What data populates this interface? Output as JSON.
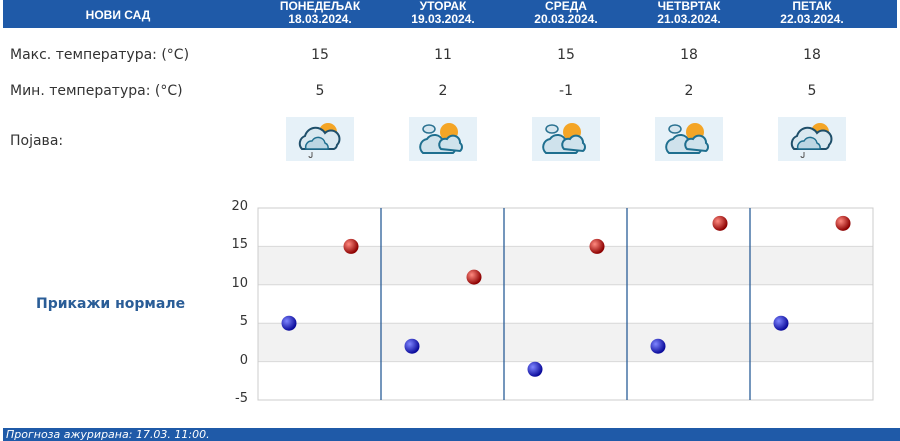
{
  "header": {
    "city": "НОВИ САД",
    "days": [
      {
        "name": "ПОНЕДЕЉАК",
        "date": "18.03.2024."
      },
      {
        "name": "УТОРАК",
        "date": "19.03.2024."
      },
      {
        "name": "СРЕДА",
        "date": "20.03.2024."
      },
      {
        "name": "ЧЕТВРТАК",
        "date": "21.03.2024."
      },
      {
        "name": "ПЕТАК",
        "date": "22.03.2024."
      }
    ]
  },
  "rows": {
    "max_label": "Макс. температура: (°C)",
    "min_label": "Мин. температура: (°C)",
    "phenomenon_label": "Појава:",
    "max": [
      "15",
      "11",
      "15",
      "18",
      "18"
    ],
    "min": [
      "5",
      "2",
      "-1",
      "2",
      "5"
    ],
    "icons": [
      "partly-cloudy-light-rain-icon",
      "partly-cloudy-sun-icon",
      "partly-cloudy-sun-icon",
      "partly-cloudy-sun-icon",
      "partly-cloudy-light-rain-icon"
    ]
  },
  "normals_link": "Прикажи нормале",
  "chart_data": {
    "type": "scatter",
    "ylim": [
      -5,
      20
    ],
    "yticks": [
      "20",
      "15",
      "10",
      "5",
      "0",
      "-5"
    ],
    "categories": [
      "18.03.2024.",
      "19.03.2024.",
      "20.03.2024.",
      "21.03.2024.",
      "22.03.2024."
    ],
    "series": [
      {
        "values": [
          5,
          2,
          -1,
          2,
          5
        ],
        "color": "#1a1ad0"
      },
      {
        "values": [
          15,
          11,
          15,
          18,
          18
        ],
        "color": "#c81010"
      }
    ]
  },
  "footer": "Прогноза ажурирана:  17.03. 11:00.",
  "colors": {
    "header": "#1f5aa8",
    "accent": "#2a5d97"
  }
}
